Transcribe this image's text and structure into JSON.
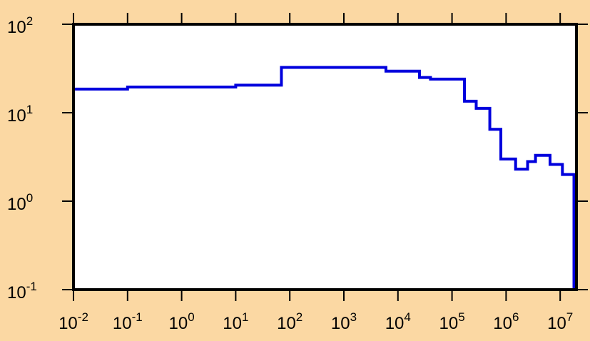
{
  "chart_data": {
    "type": "line",
    "title": "",
    "xlabel": "",
    "ylabel": "",
    "x_scale": "log",
    "y_scale": "log",
    "xlim": [
      0.01,
      20000000
    ],
    "ylim": [
      0.1,
      100
    ],
    "x_ticks": [
      {
        "value": 0.01,
        "base": "10",
        "exp": "-2"
      },
      {
        "value": 0.1,
        "base": "10",
        "exp": "-1"
      },
      {
        "value": 1,
        "base": "10",
        "exp": "0"
      },
      {
        "value": 10,
        "base": "10",
        "exp": "1"
      },
      {
        "value": 100,
        "base": "10",
        "exp": "2"
      },
      {
        "value": 1000,
        "base": "10",
        "exp": "3"
      },
      {
        "value": 10000,
        "base": "10",
        "exp": "4"
      },
      {
        "value": 100000,
        "base": "10",
        "exp": "5"
      },
      {
        "value": 1000000,
        "base": "10",
        "exp": "6"
      },
      {
        "value": 10000000,
        "base": "10",
        "exp": "7"
      }
    ],
    "y_ticks": [
      {
        "value": 0.1,
        "base": "10",
        "exp": "-1"
      },
      {
        "value": 1,
        "base": "10",
        "exp": "0"
      },
      {
        "value": 10,
        "base": "10",
        "exp": "1"
      },
      {
        "value": 100,
        "base": "10",
        "exp": "2"
      }
    ],
    "grid": false,
    "legend": "none",
    "series": [
      {
        "style": "step",
        "color": "#0000dd",
        "bin_edges": [
          0.01,
          0.1,
          10,
          70,
          6000,
          25000,
          40000,
          170000,
          280000,
          500000,
          800000,
          1500000,
          2500000,
          3500000,
          6500000,
          11000000,
          18000000
        ],
        "values": [
          18.5,
          19.5,
          20.5,
          32.5,
          29.5,
          25,
          24,
          13.5,
          11.2,
          6.5,
          3.0,
          2.3,
          2.8,
          3.3,
          2.6,
          2.0
        ]
      }
    ],
    "colors": {
      "background": "#fbd8a3",
      "plot_area": "#ffffff",
      "frame": "#000000",
      "line": "#0000dd"
    }
  }
}
